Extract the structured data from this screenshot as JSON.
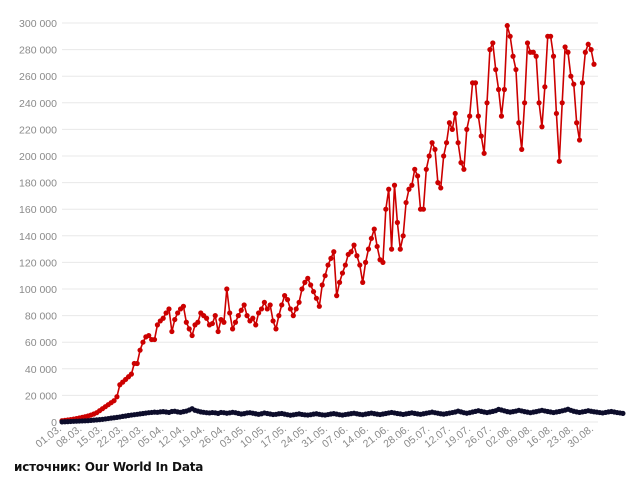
{
  "source_text": "источник: Our World In Data",
  "colors": {
    "series_red": "#cc0000",
    "series_dark": "#0d0d2b",
    "grid": "#e8e8e8",
    "tick": "#8a8a8a"
  },
  "chart_data": {
    "type": "line",
    "title": "",
    "xlabel": "",
    "ylabel": "",
    "ylim": [
      0,
      300000
    ],
    "yticks": [
      0,
      20000,
      40000,
      60000,
      80000,
      100000,
      120000,
      140000,
      160000,
      180000,
      200000,
      220000,
      240000,
      260000,
      280000,
      300000
    ],
    "ytick_labels": [
      "0",
      "20 000",
      "40 000",
      "60 000",
      "80 000",
      "100 000",
      "120 000",
      "140 000",
      "160 000",
      "180 000",
      "200 000",
      "220 000",
      "240 000",
      "260 000",
      "280 000",
      "300 000"
    ],
    "xtick_labels": [
      "01.03.",
      "08.03.",
      "15.03.",
      "22.03.",
      "29.03.",
      "05.04.",
      "12.04.",
      "19.04.",
      "26.04.",
      "03.05.",
      "10.05.",
      "17.05.",
      "24.05.",
      "31.05.",
      "07.06.",
      "14.06.",
      "21.06.",
      "28.06.",
      "05.07.",
      "12.07.",
      "19.07.",
      "26.07.",
      "02.08.",
      "09.08.",
      "16.08.",
      "23.08.",
      "30.08."
    ],
    "grid": true,
    "series": [
      {
        "values": [
          1000,
          1200,
          1500,
          1800,
          2200,
          2600,
          3000,
          3500,
          4000,
          4500,
          5200,
          6000,
          7000,
          8500,
          10000,
          11500,
          13000,
          14500,
          16000,
          19000,
          28000,
          30000,
          32000,
          34000,
          36000,
          44000,
          44000,
          54000,
          60000,
          64000,
          65000,
          62000,
          62000,
          73000,
          76000,
          78000,
          82000,
          85000,
          68000,
          77000,
          82000,
          85000,
          87000,
          75000,
          70000,
          65000,
          73000,
          75000,
          82000,
          80000,
          78000,
          73000,
          74000,
          80000,
          68000,
          77000,
          75000,
          100000,
          82000,
          70000,
          75000,
          80000,
          84000,
          88000,
          80000,
          76000,
          78000,
          73000,
          82000,
          85000,
          90000,
          85000,
          88000,
          76000,
          70000,
          80000,
          88000,
          95000,
          92000,
          85000,
          80000,
          85000,
          90000,
          100000,
          105000,
          108000,
          103000,
          98000,
          93000,
          87000,
          103000,
          110000,
          118000,
          123000,
          128000,
          95000,
          105000,
          112000,
          118000,
          126000,
          128000,
          133000,
          125000,
          118000,
          105000,
          120000,
          130000,
          138000,
          145000,
          132000,
          122000,
          120000,
          160000,
          175000,
          130000,
          178000,
          150000,
          130000,
          140000,
          165000,
          175000,
          178000,
          190000,
          185000,
          160000,
          160000,
          190000,
          200000,
          210000,
          205000,
          180000,
          176000,
          200000,
          210000,
          225000,
          220000,
          232000,
          210000,
          195000,
          190000,
          220000,
          230000,
          255000,
          255000,
          230000,
          215000,
          202000,
          240000,
          280000,
          285000,
          265000,
          250000,
          230000,
          250000,
          298000,
          290000,
          275000,
          265000,
          225000,
          205000,
          240000,
          285000,
          278000,
          278000,
          275000,
          240000,
          222000,
          252000,
          290000,
          290000,
          275000,
          232000,
          196000,
          240000,
          282000,
          278000,
          260000,
          254000,
          225000,
          212000,
          255000,
          278000,
          284000,
          280000,
          269000
        ],
        "color": "#cc0000"
      },
      {
        "values": [
          100,
          200,
          300,
          400,
          500,
          600,
          700,
          800,
          900,
          1000,
          1200,
          1400,
          1600,
          1800,
          2000,
          2300,
          2600,
          2900,
          3200,
          3500,
          3800,
          4200,
          4500,
          4900,
          5200,
          5500,
          5800,
          6100,
          6400,
          6700,
          7000,
          7200,
          7400,
          7300,
          7600,
          7800,
          7500,
          7200,
          7900,
          8100,
          7600,
          7300,
          7800,
          8200,
          9000,
          10000,
          8800,
          8200,
          7600,
          7300,
          7000,
          6800,
          7100,
          6900,
          6500,
          7200,
          7000,
          6600,
          6900,
          7300,
          7000,
          6500,
          6000,
          6300,
          6800,
          7000,
          6600,
          6200,
          5800,
          6200,
          6800,
          6400,
          6000,
          5600,
          5800,
          6200,
          6400,
          5900,
          5500,
          5100,
          5400,
          5800,
          6100,
          5700,
          5400,
          5200,
          5500,
          5900,
          6200,
          5800,
          5400,
          5200,
          5600,
          6000,
          6300,
          5900,
          5500,
          5200,
          5600,
          5900,
          6300,
          6600,
          6200,
          5800,
          5500,
          5900,
          6300,
          6700,
          6300,
          5900,
          5600,
          6000,
          6400,
          6800,
          7200,
          6800,
          6400,
          6100,
          5700,
          6100,
          6500,
          6900,
          6500,
          6100,
          5800,
          6200,
          6600,
          7000,
          7400,
          7000,
          6600,
          6200,
          5900,
          6300,
          6700,
          7100,
          7500,
          8200,
          7600,
          7000,
          6600,
          7000,
          7500,
          8000,
          8500,
          8000,
          7500,
          7100,
          7500,
          8000,
          8500,
          9500,
          9000,
          8400,
          7800,
          7400,
          7800,
          8200,
          8800,
          8300,
          7800,
          7400,
          7000,
          7400,
          7800,
          8300,
          8800,
          8300,
          7900,
          7500,
          7100,
          7500,
          7900,
          8400,
          8900,
          9600,
          8800,
          8100,
          7600,
          7200,
          7600,
          8000,
          8500,
          8100,
          7700,
          7400,
          7100,
          6800,
          7200,
          7600,
          7900,
          7500,
          7100,
          6800,
          6500
        ],
        "color": "#0d0d2b"
      }
    ]
  }
}
